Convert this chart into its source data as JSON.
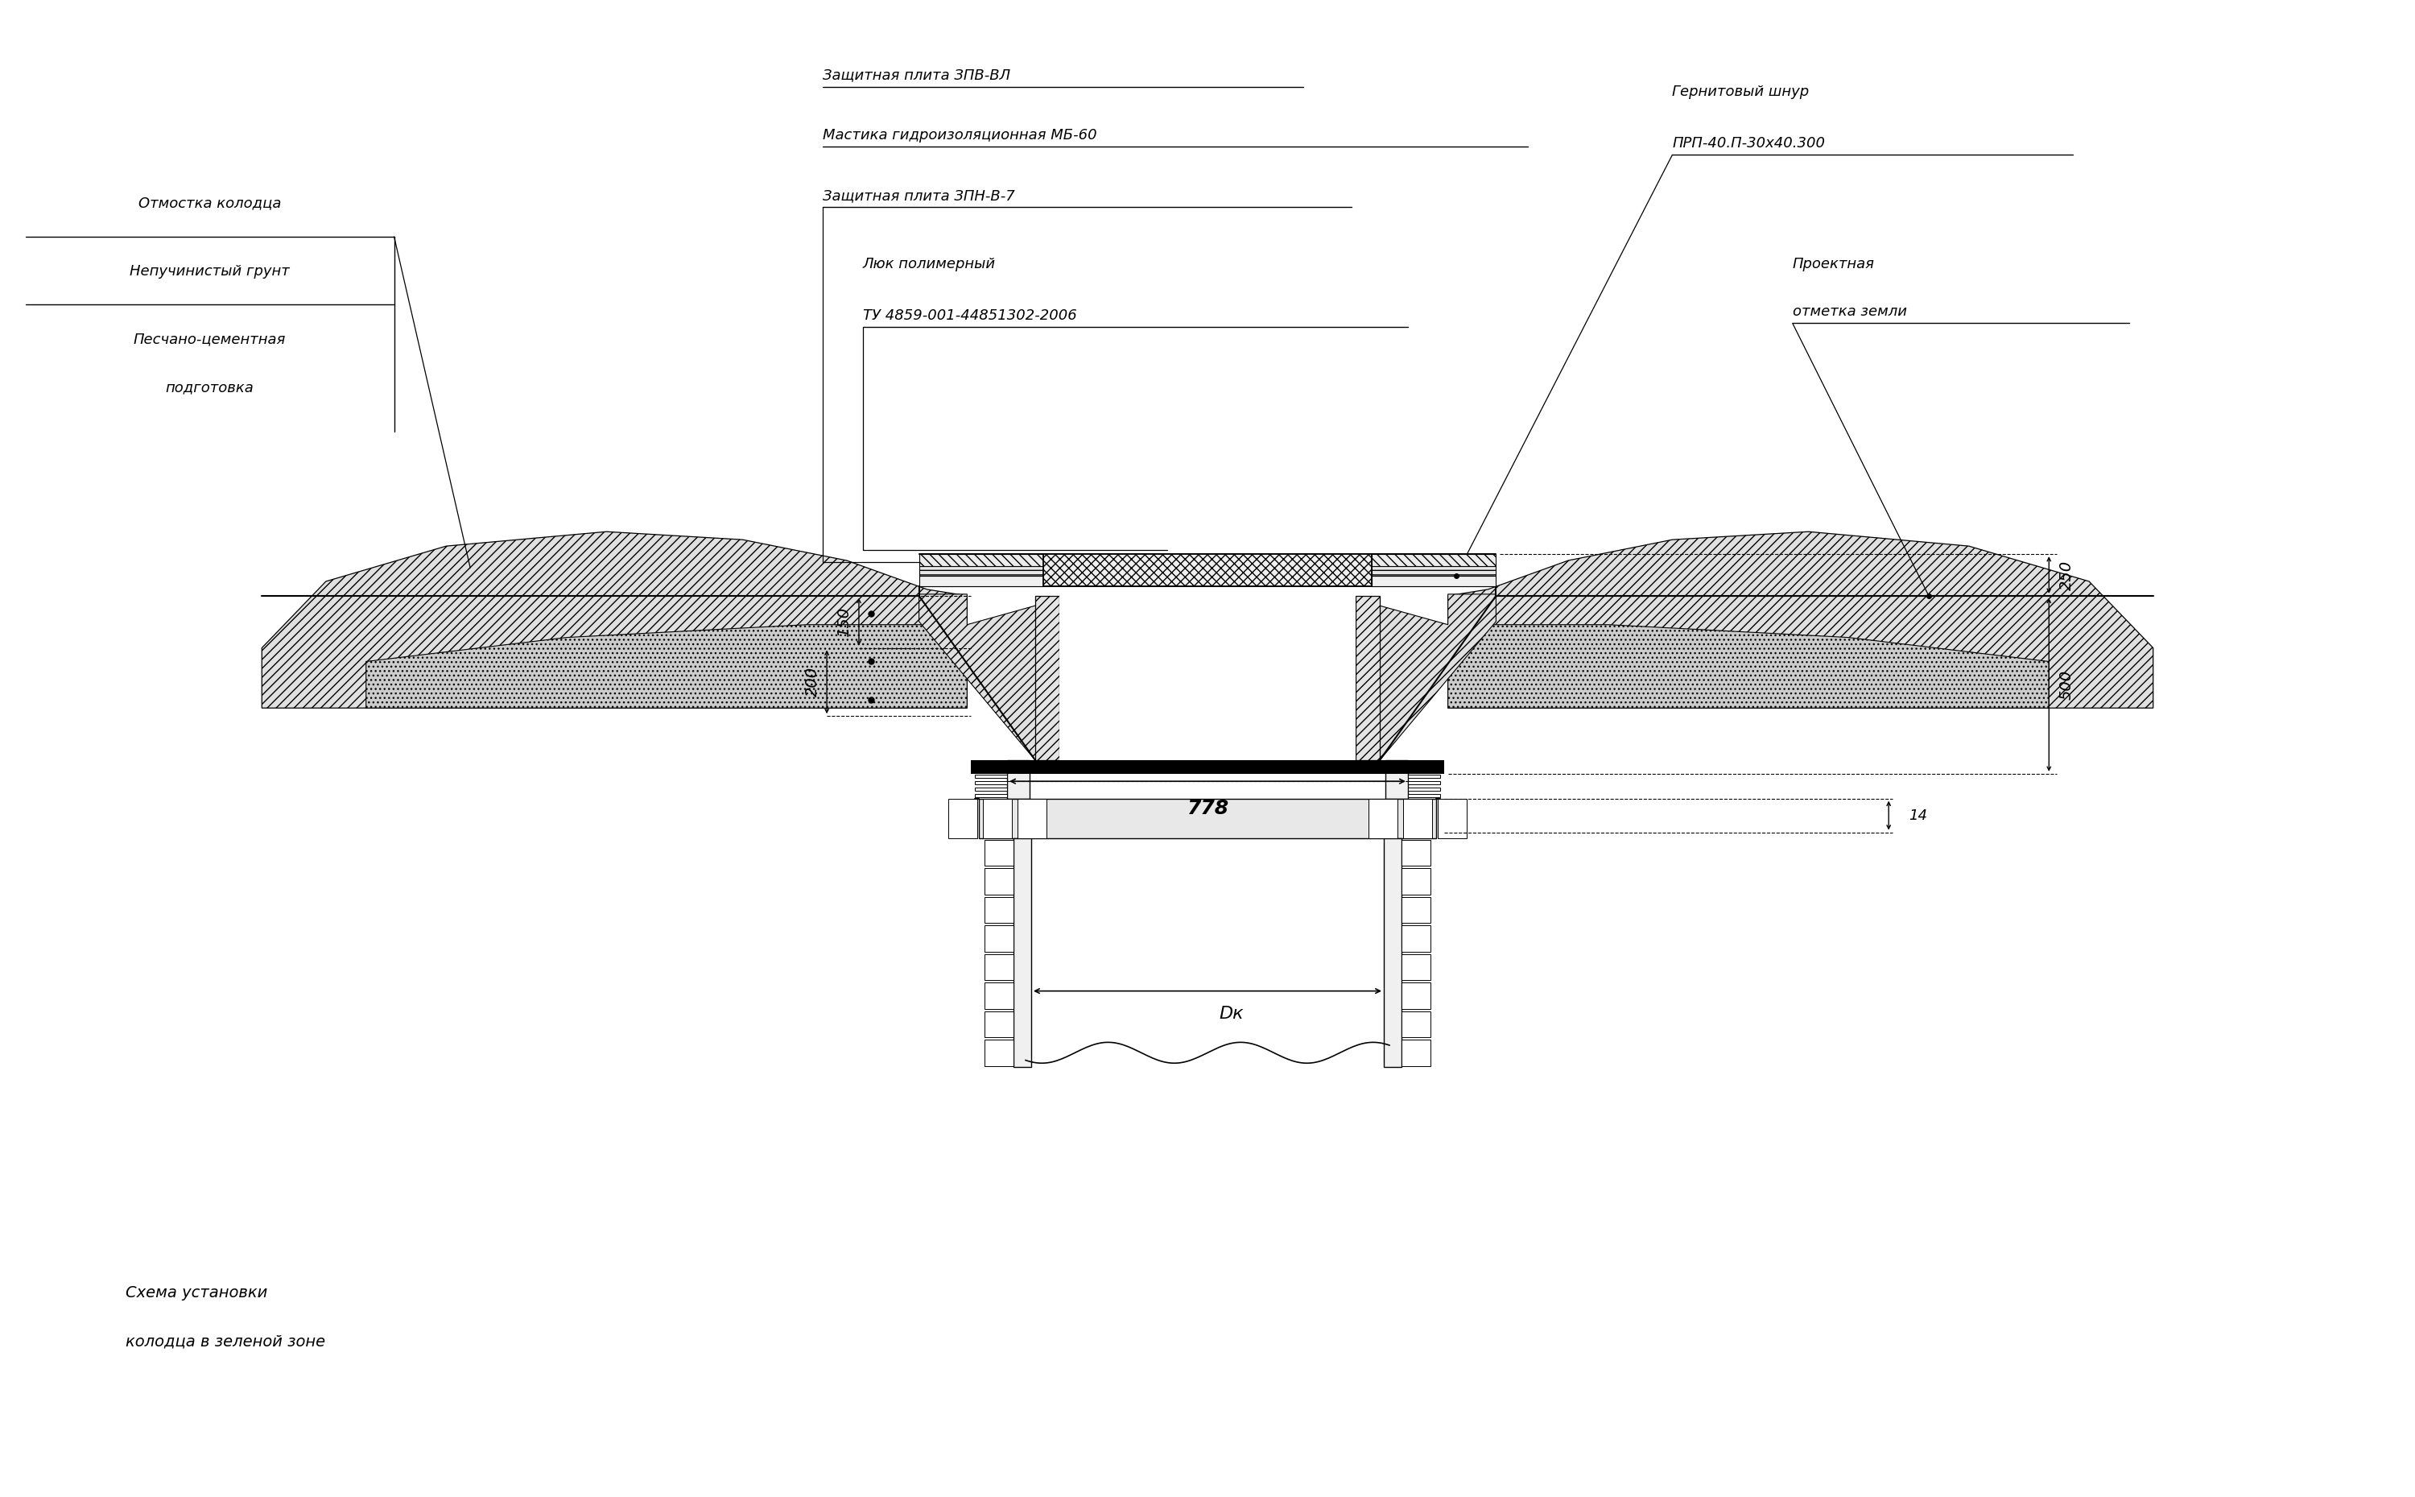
{
  "bg_color": "#ffffff",
  "lc": "#000000",
  "title1": "Схема установки",
  "title2": "колодца в зеленой зоне",
  "label_otmostka": "Отмостка колодца",
  "label_nepuch": "Непучинистый грунт",
  "label_peschan1": "Песчано-цементная",
  "label_peschan2": "подготовка",
  "label_zpv": "Защитная плита ЗПВ-ВЛ",
  "label_mastika": "Мастика гидроизоляционная МБ-60",
  "label_zpn": "Защитная плита ЗПН-В-7",
  "label_luk1": "Люк полимерный",
  "label_luk2": "ТУ 4859-001-44851302-2006",
  "label_gern1": "Гернитовый шнур",
  "label_gern2": "ПРП-40.П-30х40.300",
  "label_proekt1": "Проектная",
  "label_proekt2": "отметка земли",
  "dim_150": "150",
  "dim_200": "200",
  "dim_250": "250",
  "dim_500": "500",
  "dim_778": "778",
  "dim_14": "14",
  "dim_dk": "Dк",
  "fs_label": 13,
  "fs_dim": 14,
  "fs_title": 14
}
